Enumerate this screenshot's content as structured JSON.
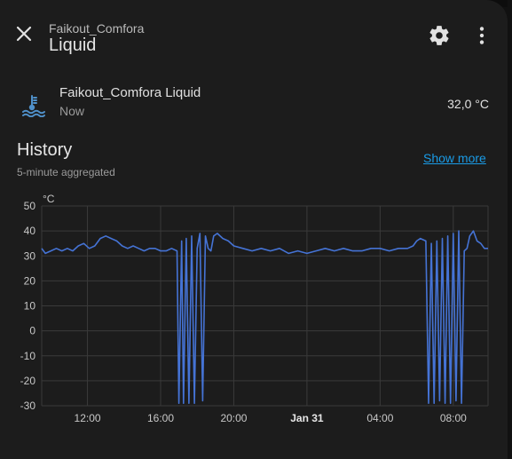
{
  "header": {
    "subtitle": "Faikout_Comfora",
    "title": "Liquid"
  },
  "entity": {
    "name": "Faikout_Comfora Liquid",
    "time": "Now",
    "value": "32,0 °C",
    "icon": "water-thermometer-icon"
  },
  "history": {
    "title": "History",
    "subtitle": "5-minute aggregated",
    "show_more": "Show more"
  },
  "colors": {
    "accent": "#1a9be6",
    "series": "#4573d5",
    "background": "#1c1c1c"
  },
  "chart_data": {
    "type": "line",
    "unit_label": "°C",
    "ylim": [
      -30,
      50
    ],
    "yticks": [
      50,
      40,
      30,
      20,
      10,
      0,
      -10,
      -20,
      -30
    ],
    "xticks": [
      "12:00",
      "16:00",
      "20:00",
      "Jan 31",
      "04:00",
      "08:00"
    ],
    "x_bold": [
      false,
      false,
      false,
      true,
      false,
      false
    ],
    "x_range_hours": [
      9.5,
      33.9
    ],
    "xtick_hours": [
      12,
      16,
      20,
      24,
      28,
      32
    ],
    "grid": true,
    "series": [
      {
        "x": [
          9.5,
          9.7,
          10.0,
          10.3,
          10.6,
          10.9,
          11.2,
          11.5,
          11.8,
          12.1,
          12.4,
          12.7,
          13.0,
          13.3,
          13.6,
          13.9,
          14.2,
          14.5,
          14.8,
          15.1,
          15.4,
          15.7,
          16.0,
          16.3,
          16.6,
          16.9,
          17.0,
          17.15,
          17.25,
          17.4,
          17.55,
          17.7,
          17.85,
          18.0,
          18.15,
          18.3,
          18.45,
          18.6,
          18.75,
          18.9,
          19.1,
          19.4,
          19.7,
          20.0,
          20.5,
          21.0,
          21.5,
          22.0,
          22.5,
          23.0,
          23.5,
          24.0,
          24.5,
          25.0,
          25.5,
          26.0,
          26.5,
          27.0,
          27.5,
          28.0,
          28.5,
          29.0,
          29.5,
          29.8,
          30.0,
          30.2,
          30.5,
          30.65,
          30.8,
          30.95,
          31.1,
          31.25,
          31.4,
          31.55,
          31.7,
          31.85,
          32.0,
          32.15,
          32.3,
          32.45,
          32.6,
          32.75,
          32.9,
          33.1,
          33.3,
          33.5,
          33.7,
          33.9
        ],
        "y": [
          33,
          31,
          32,
          33,
          32,
          33,
          32,
          34,
          35,
          33,
          34,
          37,
          38,
          37,
          36,
          34,
          33,
          34,
          33,
          32,
          33,
          33,
          32,
          32,
          33,
          32,
          -29,
          36,
          -29,
          37,
          -29,
          38,
          -29,
          33,
          39,
          -28,
          38,
          33,
          32,
          38,
          39,
          37,
          36,
          34,
          33,
          32,
          33,
          32,
          33,
          31,
          32,
          31,
          32,
          33,
          32,
          33,
          32,
          32,
          33,
          33,
          32,
          33,
          33,
          34,
          36,
          37,
          36,
          -29,
          35,
          -29,
          36,
          -28,
          37,
          -29,
          38,
          -29,
          39,
          -28,
          40,
          -29,
          32,
          33,
          38,
          40,
          36,
          35,
          33,
          33
        ]
      }
    ]
  }
}
